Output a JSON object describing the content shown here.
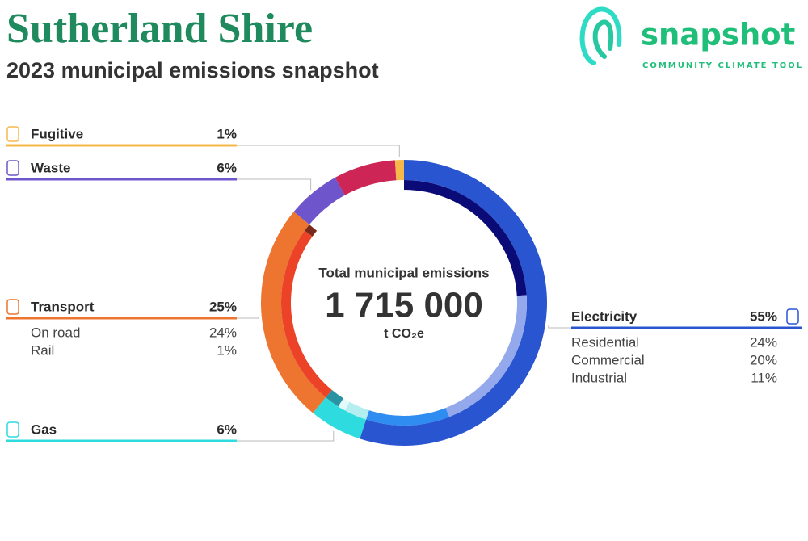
{
  "chart_data": {
    "type": "donut",
    "title": "Sutherland Shire",
    "subtitle": "2023 municipal emissions snapshot",
    "center_label": "Total municipal emissions",
    "total": "1 715 000",
    "unit": "t CO₂e",
    "brand": "snapshot",
    "brand_tagline": "COMMUNITY CLIMATE TOOL",
    "sectors": [
      {
        "name": "Electricity",
        "value": 55,
        "value_label": "55%",
        "color": "#2a55d0",
        "inner": [
          {
            "name": "Residential",
            "value": 24,
            "value_label": "24%",
            "color": "#0b0b78"
          },
          {
            "name": "Commercial",
            "value": 20,
            "value_label": "20%",
            "color": "#94a8ec"
          },
          {
            "name": "Industrial",
            "value": 11,
            "value_label": "11%",
            "color": "#2f8cf0"
          }
        ]
      },
      {
        "name": "Gas",
        "value": 6,
        "value_label": "6%",
        "color": "#2edbdf",
        "inner": [
          {
            "name": null,
            "value": 3,
            "color": "#b4eef0"
          },
          {
            "name": null,
            "value": 1,
            "color": "#e4fafa"
          },
          {
            "name": null,
            "value": 2,
            "color": "#2a93a2"
          }
        ]
      },
      {
        "name": "Transport",
        "value": 25,
        "value_label": "25%",
        "color": "#ee7530",
        "inner": [
          {
            "name": "On road",
            "value": 24,
            "value_label": "24%",
            "color": "#ec4328"
          },
          {
            "name": "Rail",
            "value": 1,
            "value_label": "1%",
            "color": "#7a2a1c"
          }
        ]
      },
      {
        "name": "Waste",
        "value": 6,
        "value_label": "6%",
        "color": "#6f55cc"
      },
      {
        "name": null,
        "value": 7,
        "color": "#cc2556"
      },
      {
        "name": "Fugitive",
        "value": 1,
        "value_label": "1%",
        "color": "#f7b84a"
      }
    ]
  }
}
